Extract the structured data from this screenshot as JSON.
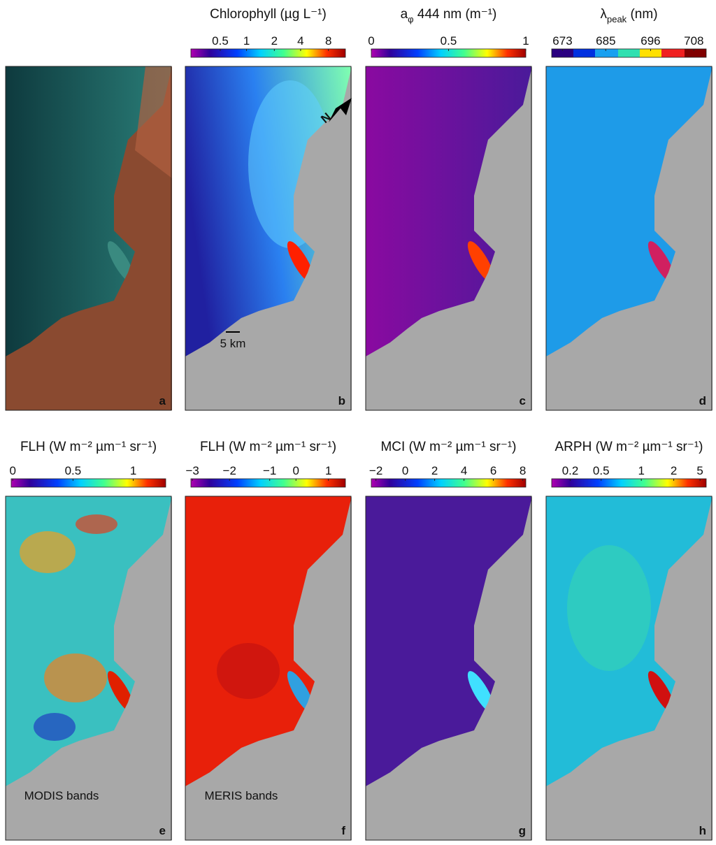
{
  "panels": [
    {
      "letter": "a"
    },
    {
      "title": "Chlorophyll (µg L⁻¹)",
      "ticks": [
        "0.5",
        "1",
        "2",
        "4",
        "8"
      ],
      "letter": "b",
      "scale_bar": "5 km",
      "north": "N"
    },
    {
      "title_parts": {
        "main": "a",
        "sub": "φ",
        "rest": " 444 nm (m⁻¹)"
      },
      "ticks": [
        "0",
        "0.5",
        "1"
      ],
      "letter": "c"
    },
    {
      "title_parts": {
        "main": "λ",
        "sub": "peak",
        "rest": " (nm)"
      },
      "ticks": [
        "673",
        "685",
        "696",
        "708"
      ],
      "letter": "d"
    },
    {
      "title": "FLH (W m⁻² µm⁻¹ sr⁻¹)",
      "ticks": [
        "0",
        "0.5",
        "1"
      ],
      "letter": "e",
      "note": "MODIS bands"
    },
    {
      "title": "FLH (W m⁻² µm⁻¹ sr⁻¹)",
      "ticks": [
        "−3",
        "−2",
        "−1",
        "0",
        "1"
      ],
      "letter": "f",
      "note": "MERIS bands"
    },
    {
      "title": "MCI (W m⁻² µm⁻¹ sr⁻¹)",
      "ticks": [
        "−2",
        "0",
        "2",
        "4",
        "6",
        "8"
      ],
      "letter": "g"
    },
    {
      "title": "ARPH (W m⁻² µm⁻¹ sr⁻¹)",
      "ticks": [
        "0.2",
        "0.5",
        "1",
        "2",
        "5"
      ],
      "letter": "h"
    }
  ]
}
